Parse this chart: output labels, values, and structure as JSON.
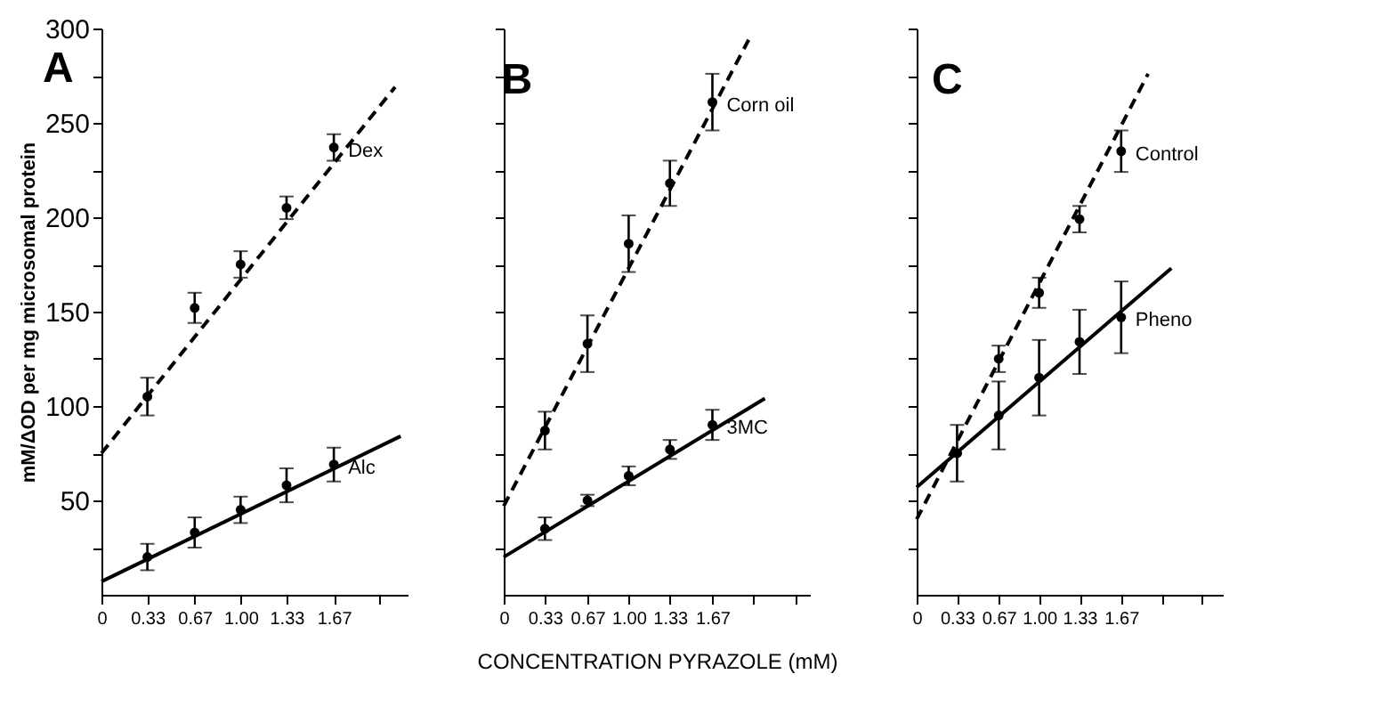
{
  "chart_data": [
    {
      "type": "scatter",
      "title": "A",
      "ylabel": "mM/ΔOD per mg microsomal protein",
      "xlim": [
        0,
        2.2
      ],
      "xticks": [
        0,
        0.33,
        0.67,
        {
          "value": 1,
          "label": "1.00"
        },
        1.33,
        1.67,
        {
          "value": 2,
          "label": null
        }
      ],
      "ylim": [
        0,
        300
      ],
      "yticks": [
        {
          "value": 25,
          "label": null
        },
        50,
        {
          "value": 75,
          "label": null
        },
        100,
        {
          "value": 125,
          "label": null
        },
        150,
        {
          "value": 175,
          "label": null
        },
        200,
        {
          "value": 225,
          "label": null
        },
        250,
        {
          "value": 275,
          "label": null
        },
        300
      ],
      "series": [
        {
          "name": "Dex",
          "color": "#000000",
          "x": [
            0.33,
            0.67,
            1,
            1.33,
            1.67
          ],
          "values": [
            105,
            152,
            175,
            205,
            237
          ],
          "errors": [
            10,
            8,
            7,
            6,
            7
          ],
          "marker": "circle"
        },
        {
          "type": "line",
          "color": "#000000",
          "line_style": "dashed",
          "x": [
            0,
            2.11
          ],
          "values": [
            75,
            269
          ]
        },
        {
          "name": "Alc",
          "color": "#000000",
          "x": [
            0.33,
            0.67,
            1,
            1.33,
            1.67
          ],
          "values": [
            20,
            33,
            45,
            58,
            69
          ],
          "errors": [
            7,
            8,
            7,
            9,
            9
          ],
          "marker": "circle"
        },
        {
          "type": "line",
          "color": "#000000",
          "line_style": "solid",
          "x": [
            0,
            2.15
          ],
          "values": [
            7,
            84
          ]
        }
      ]
    },
    {
      "type": "scatter",
      "title": "B",
      "xlabel": "CONCENTRATION PYRAZOLE (mM)",
      "tick_labels": "x",
      "xlim": [
        0,
        2.45
      ],
      "xticks": [
        0,
        0.33,
        0.67,
        {
          "value": 1,
          "label": "1.00"
        },
        1.33,
        1.67,
        {
          "value": 2,
          "label": null
        },
        {
          "value": 2.33,
          "label": null
        }
      ],
      "ylim": [
        0,
        300
      ],
      "yticks": [
        25,
        50,
        75,
        100,
        125,
        150,
        175,
        200,
        225,
        250,
        275,
        300
      ],
      "series": [
        {
          "name": "Corn oil",
          "color": "#000000",
          "x": [
            0.33,
            0.67,
            1,
            1.33,
            1.67
          ],
          "values": [
            87,
            133,
            186,
            218,
            261
          ],
          "errors": [
            10,
            15,
            15,
            12,
            15
          ],
          "marker": "circle"
        },
        {
          "type": "line",
          "color": "#000000",
          "line_style": "dashed",
          "x": [
            0,
            1.96
          ],
          "values": [
            47,
            294
          ]
        },
        {
          "name": "3MC",
          "color": "#000000",
          "x": [
            0.33,
            0.67,
            1,
            1.33,
            1.67
          ],
          "values": [
            35,
            50,
            63,
            77,
            90
          ],
          "errors": [
            6,
            3,
            5,
            5,
            8
          ],
          "marker": "circle"
        },
        {
          "type": "line",
          "color": "#000000",
          "line_style": "solid",
          "x": [
            0,
            2.09
          ],
          "values": [
            20,
            104
          ]
        }
      ]
    },
    {
      "type": "scatter",
      "title": "C",
      "tick_labels": "x",
      "xlim": [
        0,
        2.5
      ],
      "xticks": [
        0,
        0.33,
        0.67,
        {
          "value": 1,
          "label": "1.00"
        },
        1.33,
        1.67,
        {
          "value": 2,
          "label": null
        },
        {
          "value": 2.33,
          "label": null
        }
      ],
      "ylim": [
        0,
        300
      ],
      "yticks": [
        25,
        50,
        75,
        100,
        125,
        150,
        175,
        200,
        225,
        250,
        275,
        300
      ],
      "series": [
        {
          "name": "Control",
          "color": "#000000",
          "x": [
            0.33,
            0.67,
            1,
            1.33,
            1.67
          ],
          "values": [
            75,
            125,
            160,
            199,
            235
          ],
          "errors": [
            null,
            7,
            8,
            7,
            11
          ],
          "marker": "circle"
        },
        {
          "type": "line",
          "color": "#000000",
          "line_style": "dashed",
          "x": [
            0,
            1.89
          ],
          "values": [
            40,
            276
          ]
        },
        {
          "name": "Pheno",
          "color": "#000000",
          "x": [
            0.33,
            0.67,
            1,
            1.33,
            1.67
          ],
          "values": [
            75,
            95,
            115,
            134,
            147
          ],
          "errors": [
            15,
            18,
            20,
            17,
            19
          ],
          "marker": "circle"
        },
        {
          "type": "line",
          "color": "#000000",
          "line_style": "solid",
          "x": [
            0,
            2.08
          ],
          "values": [
            57,
            173
          ]
        }
      ]
    }
  ]
}
